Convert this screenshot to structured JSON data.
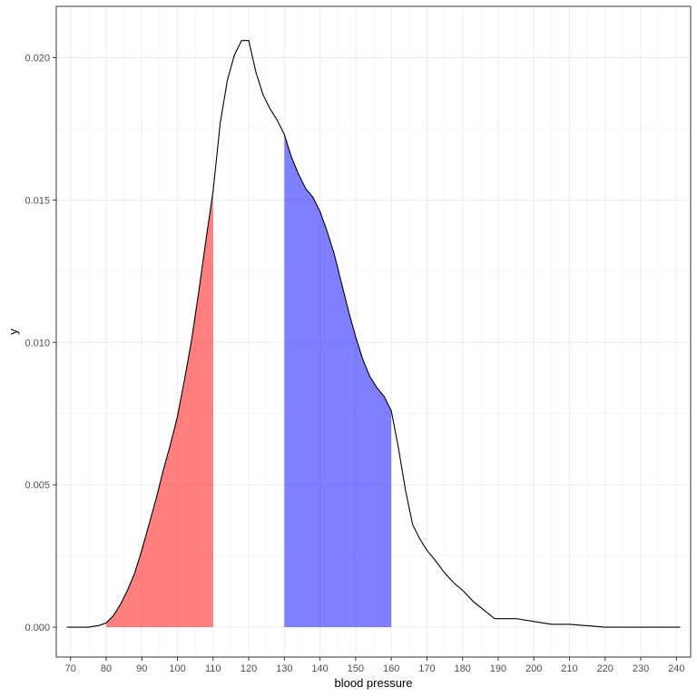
{
  "chart_data": {
    "type": "area",
    "xlabel": "blood pressure",
    "ylabel": "y",
    "xlim": [
      66,
      244
    ],
    "ylim": [
      -0.00105,
      0.0218
    ],
    "x_ticks": [
      70,
      80,
      90,
      100,
      110,
      120,
      130,
      140,
      150,
      160,
      170,
      180,
      190,
      200,
      210,
      220,
      230,
      240
    ],
    "y_ticks": [
      0.0,
      0.005,
      0.01,
      0.015,
      0.02
    ],
    "y_tick_labels": [
      "0.000",
      "0.005",
      "0.010",
      "0.015",
      "0.020"
    ],
    "grid": true,
    "theme": "bw",
    "density": {
      "x": [
        69,
        75,
        78,
        80,
        82,
        84,
        86,
        88,
        90,
        92,
        94,
        96,
        98,
        100,
        102,
        104,
        106,
        108,
        110,
        112,
        114,
        116,
        118,
        120,
        122,
        124,
        126,
        128,
        130,
        132,
        134,
        136,
        138,
        140,
        142,
        144,
        146,
        148,
        150,
        152,
        154,
        156,
        158,
        160,
        162,
        164,
        166,
        168,
        170,
        172,
        175,
        178,
        180,
        183,
        186,
        189,
        192,
        195,
        200,
        205,
        210,
        215,
        220,
        225,
        230,
        235,
        241
      ],
      "y": [
        0.0,
        0.0,
        6e-05,
        0.00015,
        0.0004,
        0.0008,
        0.0013,
        0.0019,
        0.0027,
        0.0036,
        0.0045,
        0.0055,
        0.0064,
        0.0074,
        0.0087,
        0.0101,
        0.0118,
        0.0136,
        0.0153,
        0.0177,
        0.0192,
        0.0201,
        0.0206,
        0.0206,
        0.0195,
        0.0187,
        0.0182,
        0.0178,
        0.0173,
        0.0165,
        0.0159,
        0.0154,
        0.0151,
        0.0146,
        0.0139,
        0.0131,
        0.0121,
        0.0111,
        0.0102,
        0.0094,
        0.0088,
        0.0084,
        0.0081,
        0.0076,
        0.0063,
        0.0048,
        0.0036,
        0.0031,
        0.0027,
        0.0024,
        0.0019,
        0.0015,
        0.0013,
        0.0009,
        0.0006,
        0.0003,
        0.0003,
        0.0003,
        0.0002,
        0.0001,
        0.0001,
        5e-05,
        0.0,
        0.0,
        0.0,
        0.0,
        0.0
      ],
      "line_color": "#000000"
    },
    "shaded_regions": [
      {
        "from": 80,
        "to": 110,
        "color": "#ff0000",
        "opacity": 0.5
      },
      {
        "from": 130,
        "to": 160,
        "color": "#0000ff",
        "opacity": 0.5
      }
    ]
  }
}
